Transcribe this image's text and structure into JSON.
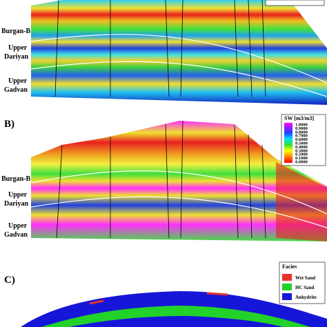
{
  "panel_a": {
    "horizons": [
      {
        "lines": [
          "Burgan-B"
        ]
      },
      {
        "lines": [
          "Upper",
          "Dariyan"
        ]
      },
      {
        "lines": [
          "Upper",
          "Gadvan"
        ]
      }
    ]
  },
  "panel_b": {
    "label": "B)",
    "horizons": [
      {
        "lines": [
          "Burgan-B"
        ]
      },
      {
        "lines": [
          "Upper",
          "Dariyan"
        ]
      },
      {
        "lines": [
          "Upper",
          "Gadvan"
        ]
      }
    ],
    "legend": {
      "title": "SW [m3/m3]",
      "ticks": [
        "1.0000",
        "0.9000",
        "0.8000",
        "0.7000",
        "0.6000",
        "0.5000",
        "0.4000",
        "0.3000",
        "0.2000",
        "0.1000",
        "0.0000"
      ]
    }
  },
  "panel_c": {
    "label": "C)",
    "legend": {
      "title": "Facies",
      "items": [
        {
          "name": "Wet Sand",
          "color": "#e8322a"
        },
        {
          "name": "HC Sand",
          "color": "#22d12a"
        },
        {
          "name": "Anhydrite",
          "color": "#1616d8"
        }
      ]
    }
  }
}
